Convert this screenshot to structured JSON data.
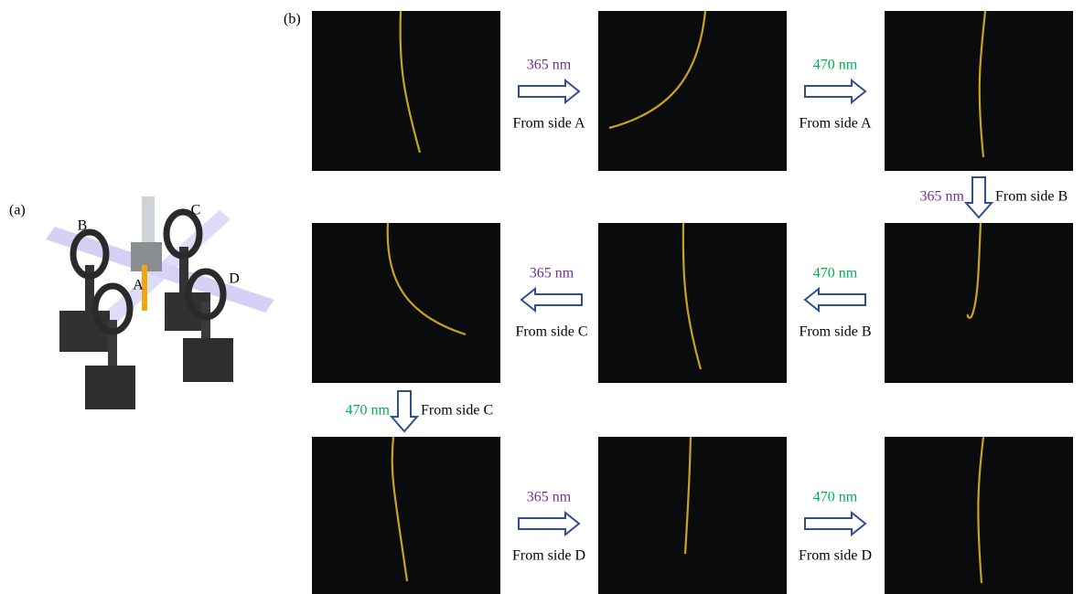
{
  "panel_a": {
    "label": "(a)",
    "markers": [
      "A",
      "B",
      "C",
      "D"
    ]
  },
  "panel_b": {
    "label": "(b)",
    "steps": [
      {
        "wavelength": "365 nm",
        "color": "#7030a0",
        "side": "From side A"
      },
      {
        "wavelength": "470 nm",
        "color": "#00b050",
        "side": "From side A"
      },
      {
        "wavelength": "365 nm",
        "color": "#7030a0",
        "side": "From side B"
      },
      {
        "wavelength": "470 nm",
        "color": "#00b050",
        "side": "From side B"
      },
      {
        "wavelength": "365 nm",
        "color": "#7030a0",
        "side": "From side C"
      },
      {
        "wavelength": "470 nm",
        "color": "#00b050",
        "side": "From side C"
      },
      {
        "wavelength": "365 nm",
        "color": "#7030a0",
        "side": "From side D"
      },
      {
        "wavelength": "470 nm",
        "color": "#00b050",
        "side": "From side D"
      }
    ]
  }
}
